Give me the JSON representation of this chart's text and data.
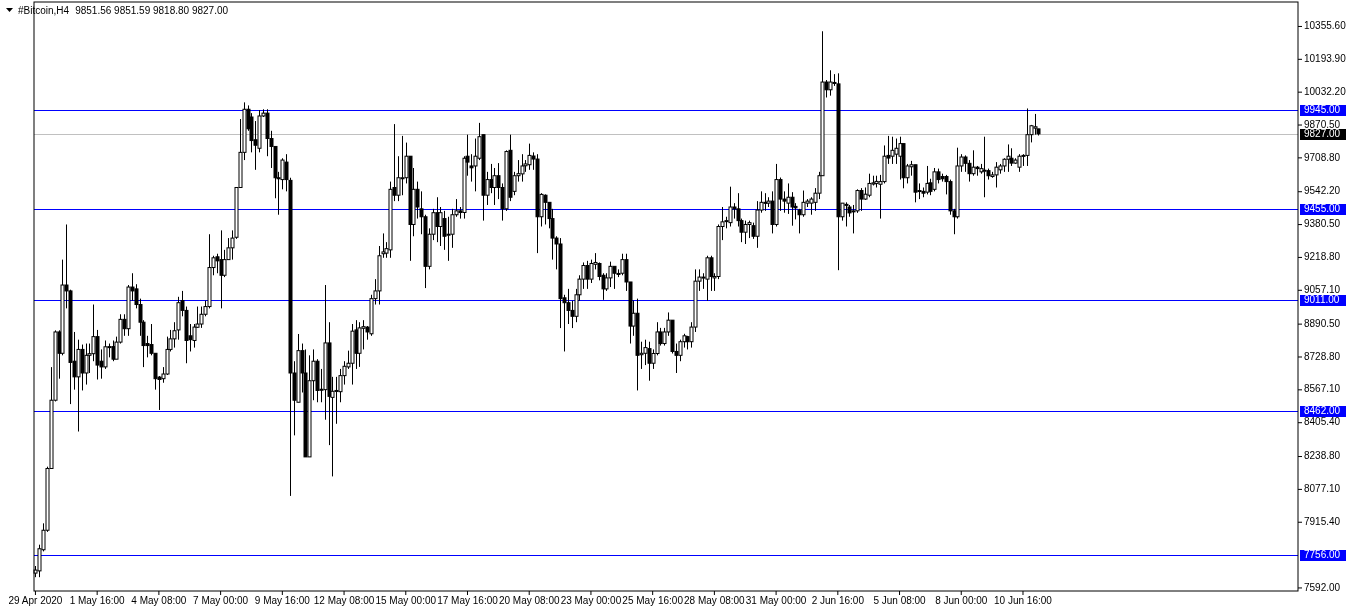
{
  "chart_data": {
    "type": "candlestick",
    "title": "#Bitcoin,H4",
    "subtitle": "9851.56 9851.59 9818.80 9827.00",
    "xlim": [
      "2020-04-28T22:30",
      "2020-06-22T13:10"
    ],
    "xticks": [
      {
        "value": "2020-04-29T00:00",
        "label": "29 Apr 2020"
      },
      {
        "value": "2020-05-01T16:00",
        "label": "1 May 16:00"
      },
      {
        "value": "2020-05-04T08:00",
        "label": "4 May 08:00"
      },
      {
        "value": "2020-05-07T00:00",
        "label": "7 May 00:00"
      },
      {
        "value": "2020-05-09T16:00",
        "label": "9 May 16:00"
      },
      {
        "value": "2020-05-12T08:00",
        "label": "12 May 08:00"
      },
      {
        "value": "2020-05-15T00:00",
        "label": "15 May 00:00"
      },
      {
        "value": "2020-05-17T16:00",
        "label": "17 May 16:00"
      },
      {
        "value": "2020-05-20T08:00",
        "label": "20 May 08:00"
      },
      {
        "value": "2020-05-23T00:00",
        "label": "23 May 00:00"
      },
      {
        "value": "2020-05-25T16:00",
        "label": "25 May 16:00"
      },
      {
        "value": "2020-05-28T08:00",
        "label": "28 May 08:00"
      },
      {
        "value": "2020-05-31T00:00",
        "label": "31 May 00:00"
      },
      {
        "value": "2020-06-02T16:00",
        "label": "2 Jun 16:00"
      },
      {
        "value": "2020-06-05T08:00",
        "label": "5 Jun 08:00"
      },
      {
        "value": "2020-06-08T00:00",
        "label": "8 Jun 00:00"
      },
      {
        "value": "2020-06-10T16:00",
        "label": "10 Jun 16:00"
      }
    ],
    "ylim": [
      7577,
      10476
    ],
    "yticks": [
      {
        "value": 10355.6,
        "label": "10355.60"
      },
      {
        "value": 10193.9,
        "label": "10193.90"
      },
      {
        "value": 10032.2,
        "label": "10032.20"
      },
      {
        "value": 9870.5,
        "label": "9870.50"
      },
      {
        "value": 9708.8,
        "label": "9708.80"
      },
      {
        "value": 9542.2,
        "label": "9542.20"
      },
      {
        "value": 9380.5,
        "label": "9380.50"
      },
      {
        "value": 9218.8,
        "label": "9218.80"
      },
      {
        "value": 9057.1,
        "label": "9057.10"
      },
      {
        "value": 8890.5,
        "label": "8890.50"
      },
      {
        "value": 8728.8,
        "label": "8728.80"
      },
      {
        "value": 8567.1,
        "label": "8567.10"
      },
      {
        "value": 8405.4,
        "label": "8405.40"
      },
      {
        "value": 8238.8,
        "label": "8238.80"
      },
      {
        "value": 8077.1,
        "label": "8077.10"
      },
      {
        "value": 7915.4,
        "label": "7915.40"
      },
      {
        "value": 7592,
        "label": "7592.00"
      }
    ],
    "ref_lines": [
      {
        "axis": "y",
        "value": 9945,
        "label": "9945.00",
        "color": "#0000ff"
      },
      {
        "axis": "y",
        "value": 9827,
        "label": "9827.00",
        "color": "#c0c0c0"
      },
      {
        "axis": "y",
        "value": 9455,
        "label": "9455.00",
        "color": "#0000ff"
      },
      {
        "axis": "y",
        "value": 9011,
        "label": "9011.00",
        "color": "#0000ff"
      },
      {
        "axis": "y",
        "value": 8462,
        "label": "8462.00",
        "color": "#0000ff"
      },
      {
        "axis": "y",
        "value": 7756,
        "label": "7756.00",
        "color": "#0000ff"
      }
    ],
    "x": [
      "2020-04-29T00:00",
      "2020-04-29T04:00",
      "2020-04-29T08:00",
      "2020-04-29T12:00",
      "2020-04-29T16:00",
      "2020-04-29T20:00",
      "2020-04-30T00:00",
      "2020-04-30T04:00",
      "2020-04-30T08:00",
      "2020-04-30T12:00",
      "2020-04-30T16:00",
      "2020-04-30T20:00",
      "2020-05-01T00:00",
      "2020-05-01T04:00",
      "2020-05-01T08:00",
      "2020-05-01T12:00",
      "2020-05-01T16:00",
      "2020-05-01T20:00",
      "2020-05-02T00:00",
      "2020-05-02T04:00",
      "2020-05-02T08:00",
      "2020-05-02T12:00",
      "2020-05-02T16:00",
      "2020-05-02T20:00",
      "2020-05-03T00:00",
      "2020-05-03T04:00",
      "2020-05-03T08:00",
      "2020-05-03T12:00",
      "2020-05-03T16:00",
      "2020-05-03T20:00",
      "2020-05-04T00:00",
      "2020-05-04T04:00",
      "2020-05-04T08:00",
      "2020-05-04T12:00",
      "2020-05-04T16:00",
      "2020-05-04T20:00",
      "2020-05-05T00:00",
      "2020-05-05T04:00",
      "2020-05-05T08:00",
      "2020-05-05T12:00",
      "2020-05-05T16:00",
      "2020-05-05T20:00",
      "2020-05-06T00:00",
      "2020-05-06T04:00",
      "2020-05-06T08:00",
      "2020-05-06T12:00",
      "2020-05-06T16:00",
      "2020-05-06T20:00",
      "2020-05-07T00:00",
      "2020-05-07T04:00",
      "2020-05-07T08:00",
      "2020-05-07T12:00",
      "2020-05-07T16:00",
      "2020-05-07T20:00",
      "2020-05-08T00:00",
      "2020-05-08T04:00",
      "2020-05-08T08:00",
      "2020-05-08T12:00",
      "2020-05-08T16:00",
      "2020-05-08T20:00",
      "2020-05-09T00:00",
      "2020-05-09T04:00",
      "2020-05-09T08:00",
      "2020-05-09T12:00",
      "2020-05-09T16:00",
      "2020-05-09T20:00",
      "2020-05-10T00:00",
      "2020-05-10T04:00",
      "2020-05-10T08:00",
      "2020-05-10T12:00",
      "2020-05-10T16:00",
      "2020-05-10T20:00",
      "2020-05-11T00:00",
      "2020-05-11T04:00",
      "2020-05-11T08:00",
      "2020-05-11T12:00",
      "2020-05-11T16:00",
      "2020-05-11T20:00",
      "2020-05-12T00:00",
      "2020-05-12T04:00",
      "2020-05-12T08:00",
      "2020-05-12T12:00",
      "2020-05-12T16:00",
      "2020-05-12T20:00",
      "2020-05-13T00:00",
      "2020-05-13T04:00",
      "2020-05-13T08:00",
      "2020-05-13T12:00",
      "2020-05-13T16:00",
      "2020-05-13T20:00",
      "2020-05-14T00:00",
      "2020-05-14T04:00",
      "2020-05-14T08:00",
      "2020-05-14T12:00",
      "2020-05-14T16:00",
      "2020-05-14T20:00",
      "2020-05-15T00:00",
      "2020-05-15T04:00",
      "2020-05-15T08:00",
      "2020-05-15T12:00",
      "2020-05-15T16:00",
      "2020-05-15T20:00",
      "2020-05-16T00:00",
      "2020-05-16T04:00",
      "2020-05-16T08:00",
      "2020-05-16T12:00",
      "2020-05-16T16:00",
      "2020-05-16T20:00",
      "2020-05-17T00:00",
      "2020-05-17T04:00",
      "2020-05-17T08:00",
      "2020-05-17T12:00",
      "2020-05-17T16:00",
      "2020-05-17T20:00",
      "2020-05-18T00:00",
      "2020-05-18T04:00",
      "2020-05-18T08:00",
      "2020-05-18T12:00",
      "2020-05-18T16:00",
      "2020-05-18T20:00",
      "2020-05-19T00:00",
      "2020-05-19T04:00",
      "2020-05-19T08:00",
      "2020-05-19T12:00",
      "2020-05-19T16:00",
      "2020-05-19T20:00",
      "2020-05-20T00:00",
      "2020-05-20T04:00",
      "2020-05-20T08:00",
      "2020-05-20T12:00",
      "2020-05-20T16:00",
      "2020-05-20T20:00",
      "2020-05-21T00:00",
      "2020-05-21T04:00",
      "2020-05-21T08:00",
      "2020-05-21T12:00",
      "2020-05-21T16:00",
      "2020-05-21T20:00",
      "2020-05-22T00:00",
      "2020-05-22T04:00",
      "2020-05-22T08:00",
      "2020-05-22T12:00",
      "2020-05-22T16:00",
      "2020-05-22T20:00",
      "2020-05-23T00:00",
      "2020-05-23T04:00",
      "2020-05-23T08:00",
      "2020-05-23T12:00",
      "2020-05-23T16:00",
      "2020-05-23T20:00",
      "2020-05-24T00:00",
      "2020-05-24T04:00",
      "2020-05-24T08:00",
      "2020-05-24T12:00",
      "2020-05-24T16:00",
      "2020-05-24T20:00",
      "2020-05-25T00:00",
      "2020-05-25T04:00",
      "2020-05-25T08:00",
      "2020-05-25T12:00",
      "2020-05-25T16:00",
      "2020-05-25T20:00",
      "2020-05-26T00:00",
      "2020-05-26T04:00",
      "2020-05-26T08:00",
      "2020-05-26T12:00",
      "2020-05-26T16:00",
      "2020-05-26T20:00",
      "2020-05-27T00:00",
      "2020-05-27T04:00",
      "2020-05-27T08:00",
      "2020-05-27T12:00",
      "2020-05-27T16:00",
      "2020-05-27T20:00",
      "2020-05-28T00:00",
      "2020-05-28T04:00",
      "2020-05-28T08:00",
      "2020-05-28T12:00",
      "2020-05-28T16:00",
      "2020-05-28T20:00",
      "2020-05-29T00:00",
      "2020-05-29T04:00",
      "2020-05-29T08:00",
      "2020-05-29T12:00",
      "2020-05-29T16:00",
      "2020-05-29T20:00",
      "2020-05-30T00:00",
      "2020-05-30T04:00",
      "2020-05-30T08:00",
      "2020-05-30T12:00",
      "2020-05-30T16:00",
      "2020-05-30T20:00",
      "2020-05-31T00:00",
      "2020-05-31T04:00",
      "2020-05-31T08:00",
      "2020-05-31T12:00",
      "2020-05-31T16:00",
      "2020-05-31T20:00",
      "2020-06-01T00:00",
      "2020-06-01T04:00",
      "2020-06-01T08:00",
      "2020-06-01T12:00",
      "2020-06-01T16:00",
      "2020-06-01T20:00",
      "2020-06-02T00:00",
      "2020-06-02T04:00",
      "2020-06-02T08:00",
      "2020-06-02T12:00",
      "2020-06-02T16:00",
      "2020-06-02T20:00",
      "2020-06-03T00:00",
      "2020-06-03T04:00",
      "2020-06-03T08:00",
      "2020-06-03T12:00",
      "2020-06-03T16:00",
      "2020-06-03T20:00",
      "2020-06-04T00:00",
      "2020-06-04T04:00",
      "2020-06-04T08:00",
      "2020-06-04T12:00",
      "2020-06-04T16:00",
      "2020-06-04T20:00",
      "2020-06-05T00:00",
      "2020-06-05T04:00",
      "2020-06-05T08:00",
      "2020-06-05T12:00",
      "2020-06-05T16:00",
      "2020-06-05T20:00",
      "2020-06-06T00:00",
      "2020-06-06T04:00",
      "2020-06-06T08:00",
      "2020-06-06T12:00",
      "2020-06-06T16:00",
      "2020-06-06T20:00",
      "2020-06-07T00:00",
      "2020-06-07T04:00",
      "2020-06-07T08:00",
      "2020-06-07T12:00",
      "2020-06-07T16:00",
      "2020-06-07T20:00",
      "2020-06-08T00:00",
      "2020-06-08T04:00",
      "2020-06-08T08:00",
      "2020-06-08T12:00",
      "2020-06-08T16:00",
      "2020-06-08T20:00",
      "2020-06-09T00:00",
      "2020-06-09T04:00",
      "2020-06-09T08:00",
      "2020-06-09T12:00",
      "2020-06-09T16:00",
      "2020-06-09T20:00",
      "2020-06-10T00:00",
      "2020-06-10T04:00",
      "2020-06-10T08:00",
      "2020-06-10T12:00",
      "2020-06-10T16:00",
      "2020-06-10T20:00",
      "2020-06-11T00:00",
      "2020-06-11T04:00",
      "2020-06-11T08:00"
    ],
    "ohlc": [
      [
        7665,
        7700,
        7645,
        7680
      ],
      [
        7676,
        7805,
        7645,
        7785
      ],
      [
        7780,
        7910,
        7772,
        7876
      ],
      [
        7876,
        8189,
        7868,
        8180
      ],
      [
        8180,
        8679,
        8180,
        8516
      ],
      [
        8516,
        8860,
        8510,
        8852
      ],
      [
        8852,
        8860,
        8622,
        8747
      ],
      [
        8747,
        9208,
        8737,
        9083
      ],
      [
        9083,
        9381,
        8968,
        9054
      ],
      [
        9054,
        9060,
        8497,
        8702
      ],
      [
        8708,
        8852,
        8568,
        8631
      ],
      [
        8631,
        8814,
        8362,
        8766
      ],
      [
        8766,
        8790,
        8564,
        8650
      ],
      [
        8650,
        8795,
        8593,
        8737
      ],
      [
        8737,
        8795,
        8650,
        8745
      ],
      [
        8745,
        8987,
        8708,
        8829
      ],
      [
        8829,
        8862,
        8618,
        8689
      ],
      [
        8708,
        8766,
        8622,
        8680
      ],
      [
        8680,
        8810,
        8670,
        8779
      ],
      [
        8775,
        8795,
        8727,
        8780
      ],
      [
        8780,
        8810,
        8708,
        8718
      ],
      [
        8718,
        8829,
        8718,
        8802
      ],
      [
        8802,
        8939,
        8795,
        8914
      ],
      [
        8914,
        8939,
        8833,
        8868
      ],
      [
        8868,
        9083,
        8833,
        9073
      ],
      [
        9073,
        9141,
        9006,
        9054
      ],
      [
        9064,
        9087,
        8968,
        8987
      ],
      [
        8987,
        9016,
        8833,
        8900
      ],
      [
        8900,
        8910,
        8679,
        8785
      ],
      [
        8795,
        8833,
        8727,
        8785
      ],
      [
        8790,
        8891,
        8737,
        8747
      ],
      [
        8747,
        8747,
        8568,
        8622
      ],
      [
        8630,
        8635,
        8468,
        8618
      ],
      [
        8622,
        8679,
        8602,
        8645
      ],
      [
        8645,
        8829,
        8640,
        8766
      ],
      [
        8766,
        8862,
        8756,
        8818
      ],
      [
        8818,
        8900,
        8775,
        8858
      ],
      [
        8862,
        9025,
        8814,
        8996
      ],
      [
        9006,
        9054,
        8929,
        8958
      ],
      [
        8958,
        8977,
        8698,
        8810
      ],
      [
        8833,
        8891,
        8756,
        8814
      ],
      [
        8810,
        8891,
        8775,
        8876
      ],
      [
        8875,
        8977,
        8872,
        8891
      ],
      [
        8891,
        8977,
        8872,
        8939
      ],
      [
        8939,
        9006,
        8929,
        8977
      ],
      [
        8977,
        9333,
        8968,
        9169
      ],
      [
        9169,
        9227,
        9131,
        9217
      ],
      [
        9222,
        9237,
        9141,
        9202
      ],
      [
        9208,
        9352,
        8968,
        9131
      ],
      [
        9131,
        9256,
        9122,
        9208
      ],
      [
        9208,
        9314,
        9208,
        9266
      ],
      [
        9266,
        9352,
        9208,
        9314
      ],
      [
        9318,
        9563,
        9310,
        9563
      ],
      [
        9563,
        9900,
        9563,
        9736
      ],
      [
        9736,
        9982,
        9698,
        9948
      ],
      [
        9948,
        9967,
        9842,
        9852
      ],
      [
        9910,
        9929,
        9736,
        9794
      ],
      [
        9798,
        9890,
        9650,
        9771
      ],
      [
        9756,
        9944,
        9736,
        9915
      ],
      [
        9915,
        9948,
        9910,
        9929
      ],
      [
        9929,
        9948,
        9717,
        9804
      ],
      [
        9804,
        9842,
        9659,
        9765
      ],
      [
        9765,
        9765,
        9510,
        9611
      ],
      [
        9611,
        9640,
        9429,
        9606
      ],
      [
        9602,
        9707,
        9554,
        9698
      ],
      [
        9688,
        9727,
        9544,
        9602
      ],
      [
        9598,
        9611,
        8045,
        8650
      ],
      [
        8650,
        8708,
        8343,
        8516
      ],
      [
        8506,
        8842,
        8506,
        8760
      ],
      [
        8760,
        8795,
        8554,
        8650
      ],
      [
        8650,
        8766,
        8237,
        8237
      ],
      [
        8237,
        8737,
        8237,
        8612
      ],
      [
        8612,
        8766,
        8516,
        8708
      ],
      [
        8708,
        8718,
        8506,
        8564
      ],
      [
        8570,
        8670,
        8506,
        8568
      ],
      [
        8568,
        9083,
        8420,
        8798
      ],
      [
        8798,
        8900,
        8295,
        8535
      ],
      [
        8530,
        8631,
        8141,
        8560
      ],
      [
        8560,
        8631,
        8400,
        8564
      ],
      [
        8558,
        8670,
        8506,
        8637
      ],
      [
        8637,
        8708,
        8593,
        8683
      ],
      [
        8680,
        8760,
        8670,
        8698
      ],
      [
        8698,
        8891,
        8593,
        8856
      ],
      [
        8862,
        8910,
        8670,
        8747
      ],
      [
        8747,
        8900,
        8680,
        8872
      ],
      [
        8870,
        8910,
        8766,
        8878
      ],
      [
        8876,
        8881,
        8814,
        8852
      ],
      [
        8843,
        9035,
        8833,
        9016
      ],
      [
        9016,
        9112,
        8987,
        9054
      ],
      [
        9054,
        9275,
        8987,
        9227
      ],
      [
        9237,
        9337,
        9217,
        9246
      ],
      [
        9240,
        9294,
        9217,
        9262
      ],
      [
        9256,
        9592,
        9217,
        9554
      ],
      [
        9563,
        9875,
        9496,
        9525
      ],
      [
        9525,
        9717,
        9496,
        9611
      ],
      [
        9608,
        9817,
        9525,
        9611
      ],
      [
        9611,
        9784,
        9583,
        9717
      ],
      [
        9717,
        9717,
        9202,
        9381
      ],
      [
        9381,
        9659,
        9323,
        9554
      ],
      [
        9554,
        9592,
        9410,
        9467
      ],
      [
        9458,
        9544,
        9333,
        9419
      ],
      [
        9419,
        9429,
        9068,
        9175
      ],
      [
        9175,
        9362,
        9160,
        9333
      ],
      [
        9333,
        9458,
        9304,
        9439
      ],
      [
        9439,
        9515,
        9294,
        9371
      ],
      [
        9371,
        9467,
        9275,
        9439
      ],
      [
        9410,
        9448,
        9256,
        9323
      ],
      [
        9330,
        9419,
        9202,
        9333
      ],
      [
        9333,
        9458,
        9266,
        9429
      ],
      [
        9429,
        9506,
        9419,
        9448
      ],
      [
        9448,
        9467,
        9410,
        9440
      ],
      [
        9440,
        9717,
        9410,
        9707
      ],
      [
        9717,
        9823,
        9621,
        9688
      ],
      [
        9669,
        9727,
        9592,
        9660
      ],
      [
        9669,
        9804,
        9544,
        9717
      ],
      [
        9707,
        9881,
        9698,
        9813
      ],
      [
        9823,
        9823,
        9400,
        9525
      ],
      [
        9525,
        9640,
        9477,
        9602
      ],
      [
        9602,
        9679,
        9535,
        9563
      ],
      [
        9563,
        9659,
        9477,
        9621
      ],
      [
        9621,
        9683,
        9506,
        9563
      ],
      [
        9563,
        9583,
        9400,
        9458
      ],
      [
        9458,
        9746,
        9448,
        9740
      ],
      [
        9746,
        9823,
        9496,
        9515
      ],
      [
        9544,
        9640,
        9525,
        9621
      ],
      [
        9621,
        9698,
        9592,
        9631
      ],
      [
        9630,
        9727,
        9592,
        9669
      ],
      [
        9670,
        9698,
        9640,
        9679
      ],
      [
        9675,
        9779,
        9650,
        9721
      ],
      [
        9718,
        9736,
        9650,
        9703
      ],
      [
        9703,
        9727,
        9240,
        9419
      ],
      [
        9419,
        9535,
        9371,
        9529
      ],
      [
        9525,
        9529,
        9381,
        9490
      ],
      [
        9490,
        9490,
        9362,
        9410
      ],
      [
        9410,
        9458,
        9208,
        9314
      ],
      [
        9314,
        9323,
        9160,
        9285
      ],
      [
        9285,
        9314,
        8871,
        9016
      ],
      [
        9020,
        9035,
        8756,
        8996
      ],
      [
        8996,
        9064,
        8891,
        8958
      ],
      [
        8958,
        9006,
        8871,
        8929
      ],
      [
        8929,
        9064,
        8900,
        9035
      ],
      [
        9035,
        9131,
        9006,
        9112
      ],
      [
        9112,
        9194,
        9064,
        9179
      ],
      [
        9179,
        9202,
        9064,
        9112
      ],
      [
        9112,
        9208,
        9093,
        9189
      ],
      [
        9185,
        9240,
        9160,
        9194
      ],
      [
        9189,
        9194,
        9106,
        9125
      ],
      [
        9131,
        9141,
        9010,
        9064
      ],
      [
        9064,
        9141,
        9054,
        9118
      ],
      [
        9118,
        9198,
        9073,
        9175
      ],
      [
        9175,
        9175,
        9064,
        9141
      ],
      [
        9140,
        9160,
        9122,
        9138
      ],
      [
        9141,
        9237,
        9131,
        9208
      ],
      [
        9208,
        9237,
        9054,
        9098
      ],
      [
        9098,
        9098,
        8795,
        8881
      ],
      [
        8881,
        9006,
        8833,
        8944
      ],
      [
        8944,
        9016,
        8564,
        8737
      ],
      [
        8740,
        8804,
        8670,
        8747
      ],
      [
        8747,
        8814,
        8689,
        8775
      ],
      [
        8770,
        8804,
        8612,
        8698
      ],
      [
        8698,
        8766,
        8670,
        8746
      ],
      [
        8746,
        8900,
        8737,
        8852
      ],
      [
        8852,
        8872,
        8785,
        8795
      ],
      [
        8795,
        8872,
        8785,
        8852
      ],
      [
        8852,
        8948,
        8833,
        8910
      ],
      [
        8910,
        8910,
        8746,
        8756
      ],
      [
        8756,
        8795,
        8650,
        8737
      ],
      [
        8737,
        8814,
        8708,
        8804
      ],
      [
        8804,
        8843,
        8775,
        8833
      ],
      [
        8829,
        8833,
        8766,
        8804
      ],
      [
        8804,
        8900,
        8775,
        8876
      ],
      [
        8876,
        9160,
        8852,
        9102
      ],
      [
        9102,
        9160,
        9054,
        9122
      ],
      [
        9118,
        9141,
        9064,
        9122
      ],
      [
        9112,
        9227,
        9006,
        9217
      ],
      [
        9217,
        9227,
        9054,
        9125
      ],
      [
        9118,
        9141,
        9054,
        9125
      ],
      [
        9125,
        9381,
        9112,
        9371
      ],
      [
        9371,
        9467,
        9304,
        9394
      ],
      [
        9395,
        9419,
        9362,
        9400
      ],
      [
        9390,
        9567,
        9371,
        9467
      ],
      [
        9467,
        9486,
        9410,
        9458
      ],
      [
        9458,
        9535,
        9371,
        9400
      ],
      [
        9400,
        9410,
        9294,
        9343
      ],
      [
        9343,
        9400,
        9285,
        9381
      ],
      [
        9381,
        9400,
        9314,
        9390
      ],
      [
        9375,
        9390,
        9310,
        9323
      ],
      [
        9323,
        9496,
        9266,
        9452
      ],
      [
        9452,
        9544,
        9439,
        9490
      ],
      [
        9490,
        9535,
        9448,
        9486
      ],
      [
        9486,
        9515,
        9467,
        9496
      ],
      [
        9496,
        9544,
        9337,
        9381
      ],
      [
        9381,
        9679,
        9371,
        9602
      ],
      [
        9602,
        9612,
        9448,
        9506
      ],
      [
        9506,
        9544,
        9439,
        9496
      ],
      [
        9486,
        9583,
        9433,
        9515
      ],
      [
        9515,
        9540,
        9375,
        9467
      ],
      [
        9470,
        9486,
        9406,
        9463
      ],
      [
        9452,
        9458,
        9337,
        9429
      ],
      [
        9429,
        9548,
        9419,
        9490
      ],
      [
        9486,
        9506,
        9467,
        9496
      ],
      [
        9486,
        9515,
        9429,
        9506
      ],
      [
        9490,
        9560,
        9448,
        9535
      ],
      [
        9535,
        9640,
        9506,
        9621
      ],
      [
        9621,
        10332,
        9621,
        10082
      ],
      [
        10082,
        10092,
        10006,
        10044
      ],
      [
        10044,
        10140,
        10015,
        10082
      ],
      [
        10080,
        10121,
        10063,
        10076
      ],
      [
        10073,
        10125,
        9156,
        9419
      ],
      [
        9419,
        9486,
        9400,
        9486
      ],
      [
        9480,
        9490,
        9371,
        9477
      ],
      [
        9467,
        9477,
        9419,
        9438
      ],
      [
        9443,
        9477,
        9337,
        9448
      ],
      [
        9448,
        9554,
        9438,
        9548
      ],
      [
        9548,
        9560,
        9448,
        9506
      ],
      [
        9506,
        9563,
        9502,
        9530
      ],
      [
        9525,
        9631,
        9515,
        9583
      ],
      [
        9580,
        9621,
        9573,
        9586
      ],
      [
        9583,
        9621,
        9563,
        9593
      ],
      [
        9579,
        9625,
        9410,
        9592
      ],
      [
        9592,
        9770,
        9583,
        9717
      ],
      [
        9721,
        9817,
        9679,
        9708
      ],
      [
        9717,
        9813,
        9679,
        9746
      ],
      [
        9727,
        9804,
        9679,
        9756
      ],
      [
        9717,
        9813,
        9602,
        9779
      ],
      [
        9779,
        9779,
        9559,
        9611
      ],
      [
        9611,
        9679,
        9583,
        9669
      ],
      [
        9665,
        9694,
        9621,
        9675
      ],
      [
        9675,
        9675,
        9490,
        9540
      ],
      [
        9544,
        9583,
        9506,
        9548
      ],
      [
        9544,
        9563,
        9515,
        9535
      ],
      [
        9540,
        9669,
        9529,
        9583
      ],
      [
        9586,
        9606,
        9525,
        9544
      ],
      [
        9554,
        9659,
        9544,
        9640
      ],
      [
        9640,
        9656,
        9583,
        9602
      ],
      [
        9617,
        9631,
        9592,
        9606
      ],
      [
        9617,
        9625,
        9529,
        9592
      ],
      [
        9592,
        9602,
        9429,
        9448
      ],
      [
        9448,
        9458,
        9333,
        9419
      ],
      [
        9419,
        9759,
        9410,
        9669
      ],
      [
        9669,
        9727,
        9640,
        9713
      ],
      [
        9713,
        9721,
        9640,
        9682
      ],
      [
        9682,
        9698,
        9592,
        9631
      ],
      [
        9631,
        9746,
        9621,
        9663
      ],
      [
        9663,
        9669,
        9621,
        9656
      ],
      [
        9640,
        9679,
        9631,
        9656
      ],
      [
        9644,
        9813,
        9515,
        9648
      ],
      [
        9646,
        9656,
        9602,
        9621
      ],
      [
        9617,
        9640,
        9611,
        9625
      ],
      [
        9625,
        9688,
        9563,
        9663
      ],
      [
        9650,
        9679,
        9631,
        9669
      ],
      [
        9669,
        9707,
        9640,
        9702
      ],
      [
        9702,
        9775,
        9640,
        9717
      ],
      [
        9707,
        9756,
        9669,
        9683
      ],
      [
        9683,
        9707,
        9679,
        9698
      ],
      [
        9663,
        9727,
        9640,
        9717
      ],
      [
        9717,
        9727,
        9669,
        9721
      ],
      [
        9721,
        9952,
        9669,
        9823
      ],
      [
        9823,
        9871,
        9785,
        9867
      ],
      [
        9855,
        9925,
        9823,
        9862
      ],
      [
        9851.56,
        9851.59,
        9818.8,
        9827
      ]
    ]
  }
}
